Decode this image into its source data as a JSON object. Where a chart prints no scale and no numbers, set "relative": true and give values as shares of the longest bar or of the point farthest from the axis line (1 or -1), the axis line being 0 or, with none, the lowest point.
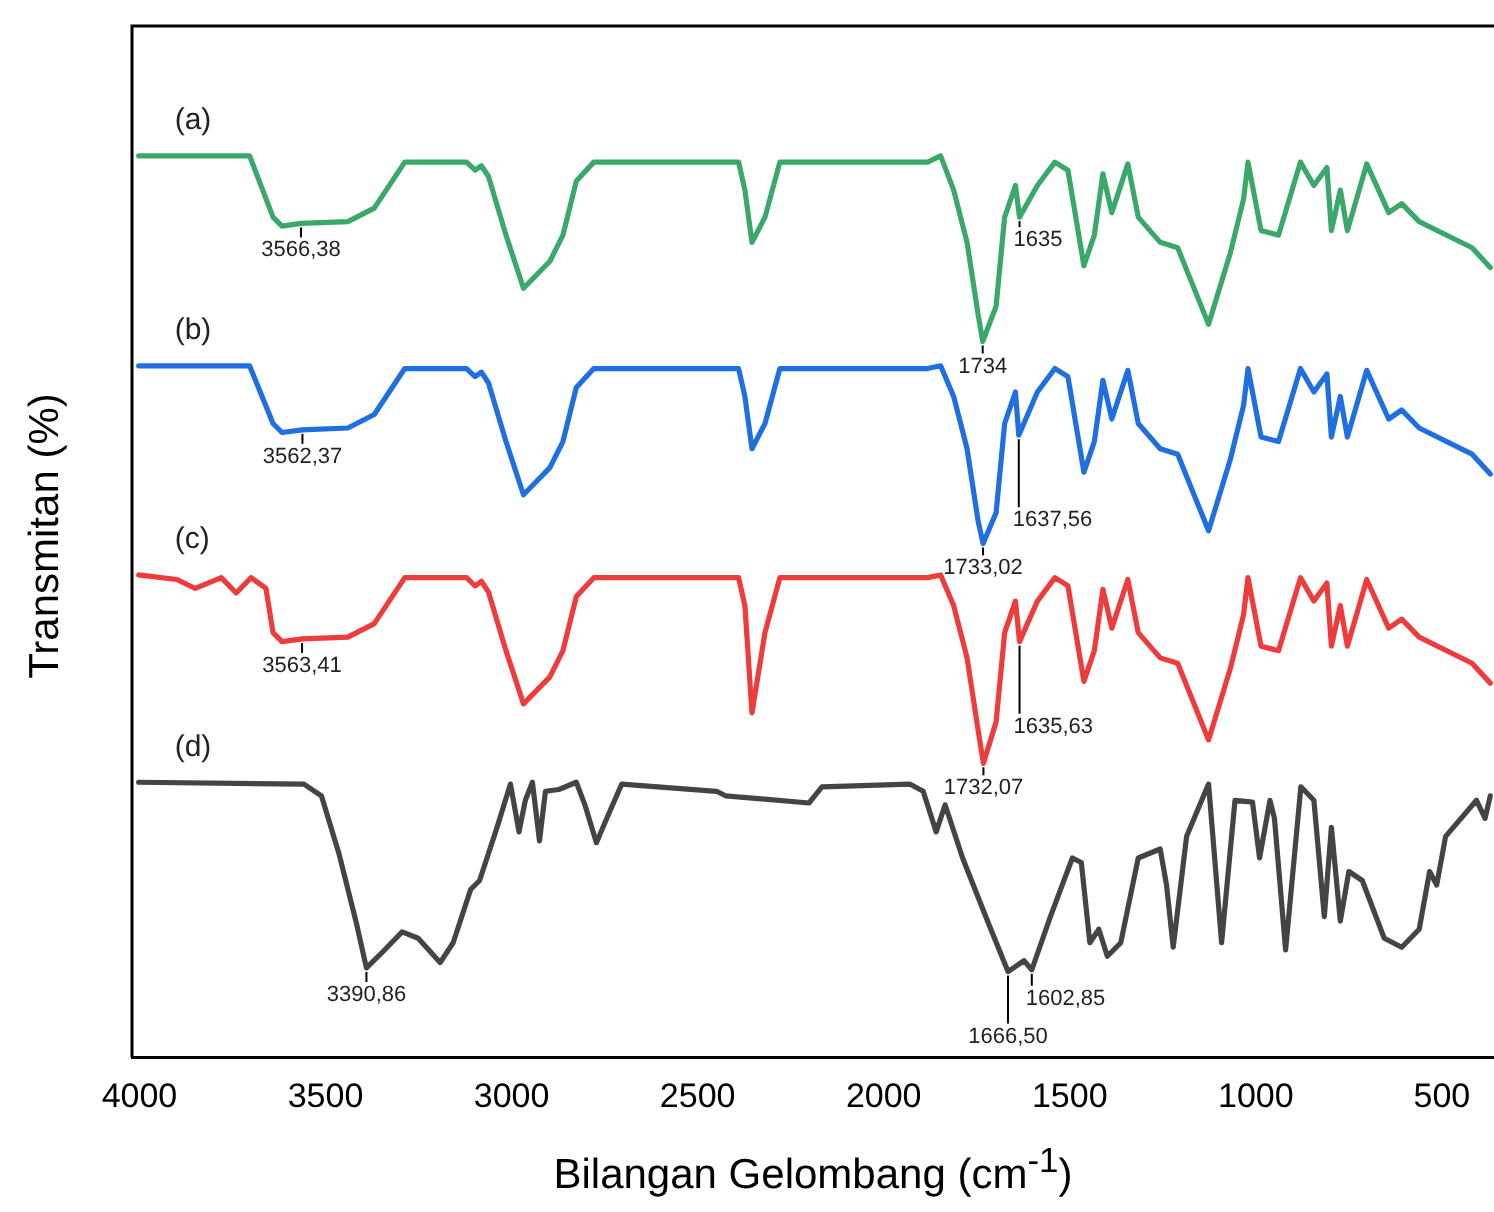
{
  "chart_data": {
    "type": "line",
    "xlabel": "Bilangan Gelombang (cm$^{-1}$)",
    "ylabel": "Transmitan (%)",
    "relative": true,
    "xlim": [
      4020,
      360
    ],
    "xticks": [
      4000,
      3500,
      3000,
      2500,
      2000,
      1500,
      1000,
      500
    ],
    "tick_labels": "x",
    "grid": false,
    "legend": false,
    "marker": "none",
    "line_style": "solid",
    "series": [
      {
        "name": "(a)",
        "color": "#3aa86a",
        "x": [
          4002,
          3704,
          3641,
          3617,
          3566,
          3440,
          3369,
          3287,
          3121,
          3098,
          3081,
          3062,
          3015,
          2968,
          2897,
          2862,
          2826,
          2779,
          2390,
          2373,
          2354,
          2319,
          2279,
          1882,
          1847,
          1812,
          1776,
          1746,
          1734,
          1698,
          1675,
          1646,
          1635,
          1587,
          1540,
          1505,
          1462,
          1434,
          1411,
          1387,
          1344,
          1316,
          1257,
          1210,
          1127,
          1068,
          1033,
          1021,
          986,
          939,
          880,
          844,
          809,
          797,
          773,
          754,
          702,
          643,
          608,
          561,
          419,
          370
        ],
        "values": [
          1,
          1,
          0.932,
          0.922,
          0.925,
          0.927,
          0.942,
          0.993,
          0.993,
          0.984,
          0.989,
          0.977,
          0.912,
          0.853,
          0.883,
          0.912,
          0.972,
          0.993,
          0.993,
          0.962,
          0.904,
          0.932,
          0.993,
          0.993,
          1,
          0.962,
          0.904,
          0.823,
          0.794,
          0.833,
          0.932,
          0.967,
          0.932,
          0.967,
          0.993,
          0.984,
          0.878,
          0.912,
          0.98,
          0.937,
          0.991,
          0.932,
          0.904,
          0.898,
          0.813,
          0.893,
          0.952,
          0.993,
          0.917,
          0.912,
          0.993,
          0.967,
          0.987,
          0.917,
          0.962,
          0.917,
          0.991,
          0.937,
          0.947,
          0.927,
          0.898,
          0.876
        ]
      },
      {
        "name": "(b)",
        "color": "#1f6fe0",
        "x": [
          4002,
          3704,
          3641,
          3617,
          3562,
          3440,
          3369,
          3287,
          3121,
          3098,
          3081,
          3062,
          3015,
          2968,
          2897,
          2862,
          2826,
          2779,
          2390,
          2373,
          2354,
          2319,
          2279,
          1882,
          1847,
          1812,
          1776,
          1746,
          1733,
          1698,
          1675,
          1646,
          1637,
          1587,
          1540,
          1505,
          1462,
          1434,
          1411,
          1387,
          1344,
          1316,
          1257,
          1210,
          1127,
          1068,
          1033,
          1021,
          986,
          939,
          880,
          844,
          809,
          797,
          773,
          754,
          702,
          643,
          608,
          561,
          419,
          370
        ],
        "values": [
          0.767,
          0.767,
          0.703,
          0.693,
          0.696,
          0.698,
          0.713,
          0.764,
          0.764,
          0.755,
          0.76,
          0.748,
          0.683,
          0.624,
          0.654,
          0.683,
          0.743,
          0.764,
          0.764,
          0.733,
          0.675,
          0.703,
          0.764,
          0.764,
          0.767,
          0.733,
          0.675,
          0.594,
          0.57,
          0.604,
          0.703,
          0.738,
          0.69,
          0.738,
          0.764,
          0.755,
          0.649,
          0.683,
          0.751,
          0.708,
          0.762,
          0.703,
          0.675,
          0.669,
          0.584,
          0.664,
          0.723,
          0.764,
          0.688,
          0.683,
          0.764,
          0.738,
          0.758,
          0.688,
          0.733,
          0.688,
          0.762,
          0.708,
          0.718,
          0.698,
          0.669,
          0.647
        ]
      },
      {
        "name": "(c)",
        "color": "#ee3b3b",
        "x": [
          4002,
          3900,
          3850,
          3780,
          3740,
          3700,
          3660,
          3641,
          3617,
          3563,
          3440,
          3369,
          3287,
          3121,
          3098,
          3081,
          3062,
          3015,
          2968,
          2897,
          2862,
          2826,
          2779,
          2390,
          2373,
          2354,
          2319,
          2279,
          1882,
          1847,
          1812,
          1776,
          1746,
          1732,
          1698,
          1675,
          1646,
          1635,
          1587,
          1540,
          1505,
          1462,
          1434,
          1411,
          1387,
          1344,
          1316,
          1257,
          1210,
          1127,
          1068,
          1033,
          1021,
          986,
          939,
          880,
          844,
          809,
          797,
          773,
          754,
          702,
          643,
          608,
          561,
          419,
          370
        ],
        "values": [
          0.535,
          0.53,
          0.52,
          0.532,
          0.515,
          0.532,
          0.52,
          0.471,
          0.461,
          0.464,
          0.466,
          0.481,
          0.532,
          0.532,
          0.523,
          0.528,
          0.516,
          0.451,
          0.392,
          0.422,
          0.451,
          0.511,
          0.532,
          0.532,
          0.501,
          0.382,
          0.471,
          0.532,
          0.532,
          0.535,
          0.501,
          0.443,
          0.362,
          0.326,
          0.372,
          0.471,
          0.506,
          0.461,
          0.506,
          0.532,
          0.523,
          0.417,
          0.451,
          0.519,
          0.476,
          0.53,
          0.471,
          0.443,
          0.437,
          0.352,
          0.432,
          0.491,
          0.532,
          0.456,
          0.451,
          0.532,
          0.506,
          0.526,
          0.456,
          0.501,
          0.456,
          0.53,
          0.476,
          0.486,
          0.466,
          0.437,
          0.415
        ]
      },
      {
        "name": "(d)",
        "color": "#444444",
        "x": [
          4002,
          3558,
          3511,
          3464,
          3416,
          3390,
          3346,
          3294,
          3251,
          3192,
          3157,
          3110,
          3086,
          3039,
          3003,
          2980,
          2963,
          2944,
          2925,
          2909,
          2873,
          2826,
          2803,
          2772,
          2744,
          2704,
          2449,
          2425,
          2201,
          2166,
          1930,
          1894,
          1859,
          1835,
          1788,
          1717,
          1666,
          1623,
          1602,
          1552,
          1493,
          1469,
          1446,
          1422,
          1399,
          1363,
          1316,
          1257,
          1240,
          1222,
          1186,
          1127,
          1092,
          1056,
          1009,
          990,
          962,
          950,
          920,
          879,
          844,
          816,
          797,
          773,
          750,
          714,
          655,
          608,
          561,
          533,
          514,
          490,
          407,
          384,
          370
        ],
        "values": [
          0.305,
          0.303,
          0.29,
          0.226,
          0.147,
          0.099,
          0.117,
          0.139,
          0.132,
          0.105,
          0.127,
          0.186,
          0.196,
          0.255,
          0.303,
          0.25,
          0.285,
          0.305,
          0.24,
          0.295,
          0.297,
          0.305,
          0.28,
          0.238,
          0.265,
          0.303,
          0.295,
          0.29,
          0.282,
          0.3,
          0.303,
          0.295,
          0.25,
          0.28,
          0.221,
          0.147,
          0.095,
          0.107,
          0.097,
          0.156,
          0.221,
          0.216,
          0.127,
          0.142,
          0.112,
          0.127,
          0.221,
          0.231,
          0.191,
          0.122,
          0.245,
          0.303,
          0.127,
          0.285,
          0.283,
          0.221,
          0.285,
          0.265,
          0.119,
          0.3,
          0.285,
          0.156,
          0.255,
          0.151,
          0.206,
          0.196,
          0.132,
          0.122,
          0.142,
          0.206,
          0.191,
          0.245,
          0.285,
          0.265,
          0.29
        ]
      }
    ],
    "annotations": [
      {
        "text": "3566,38",
        "x": 3566,
        "y": 0.925
      },
      {
        "text": "1635",
        "x": 1635,
        "y": 0.932
      },
      {
        "text": "1734",
        "x": 1734,
        "y": 0.794
      },
      {
        "text": "3562,37",
        "x": 3562,
        "y": 0.696
      },
      {
        "text": "1733,02",
        "x": 1733,
        "y": 0.57
      },
      {
        "text": "1637,56",
        "x": 1637,
        "y": 0.69
      },
      {
        "text": "3563,41",
        "x": 3563,
        "y": 0.464
      },
      {
        "text": "1732,07",
        "x": 1732,
        "y": 0.326
      },
      {
        "text": "1635,63",
        "x": 1635,
        "y": 0.461
      },
      {
        "text": "3390,86",
        "x": 3390,
        "y": 0.099
      },
      {
        "text": "1666,50",
        "x": 1666,
        "y": 0.095
      },
      {
        "text": "1602,85",
        "x": 1602,
        "y": 0.097
      }
    ]
  }
}
